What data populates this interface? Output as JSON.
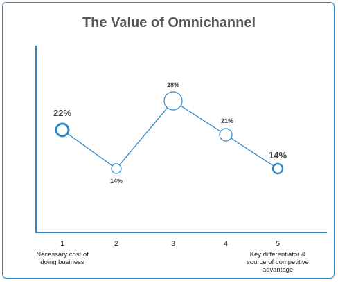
{
  "chart_data": {
    "type": "line",
    "title": "The Value of Omnichannel",
    "xlabel": "",
    "ylabel": "",
    "x": [
      "1",
      "2",
      "3",
      "4",
      "5"
    ],
    "values": [
      22,
      14,
      28,
      21,
      14
    ],
    "data_labels": [
      "22%",
      "14%",
      "28%",
      "21%",
      "14%"
    ],
    "tick_labels": [
      "1",
      "2",
      "3",
      "4",
      "5"
    ],
    "x_sublabels": [
      [
        "Necessary cost of",
        "doing business"
      ],
      [],
      [],
      [],
      [
        "Key differentiator &",
        "source of competitive",
        "advantage"
      ]
    ],
    "ylim": [
      0,
      40
    ],
    "grid": false,
    "colors": {
      "line": "#2f86c3",
      "axis": "#2f86c3",
      "frame": "#2f86c3",
      "title": "#555555"
    }
  }
}
